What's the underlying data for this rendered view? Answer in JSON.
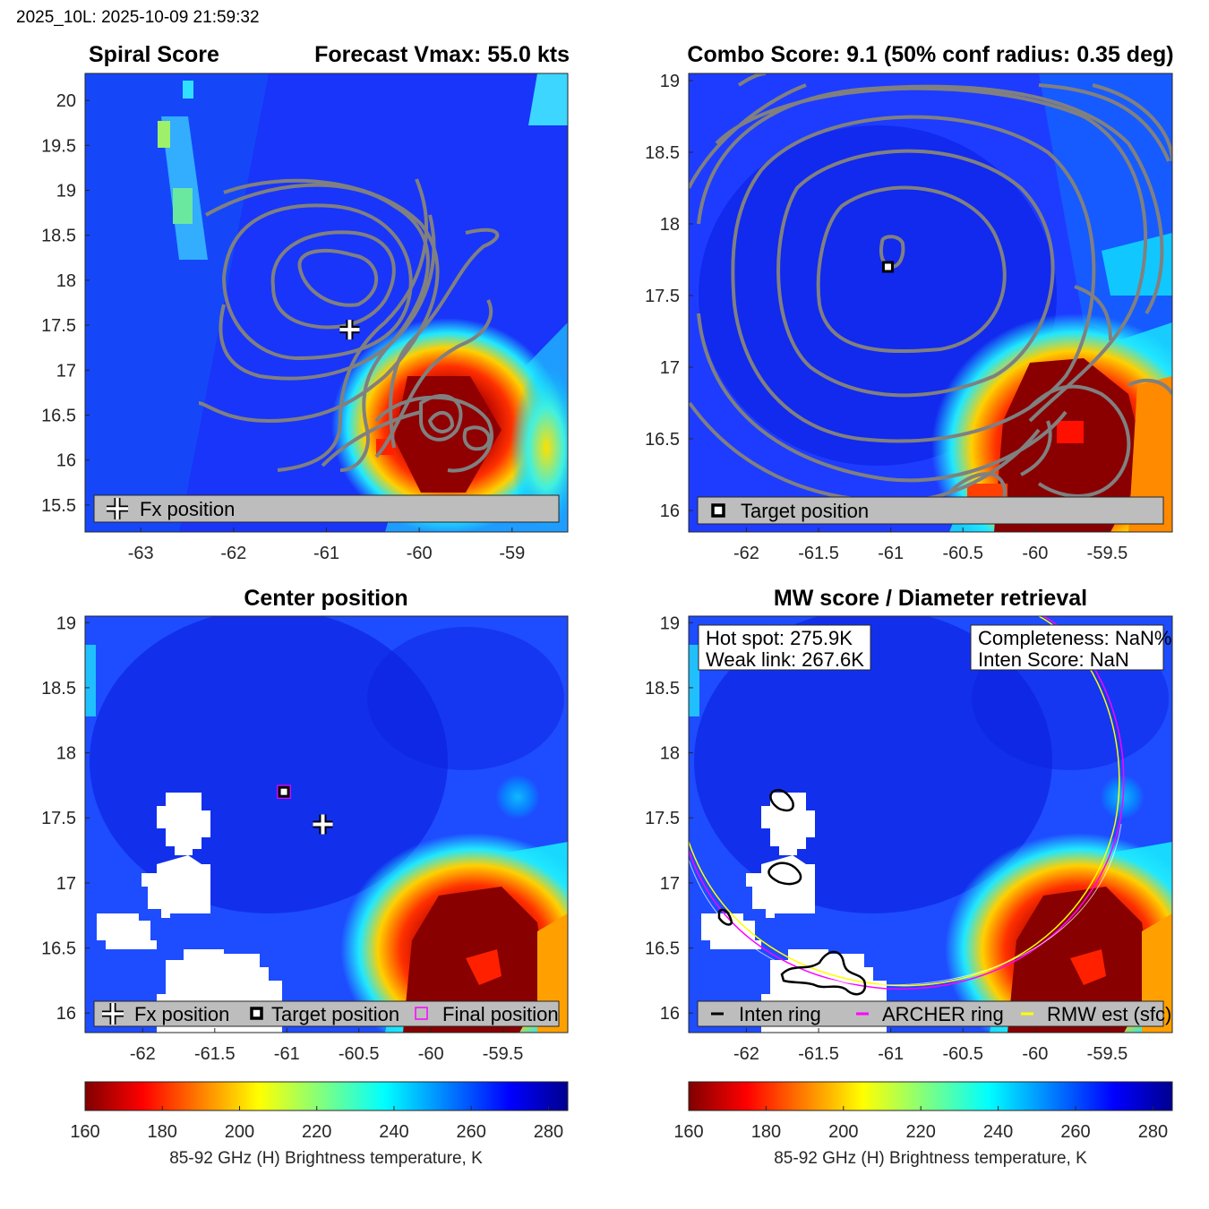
{
  "stamp": "2025_10L: 2025-10-09 21:59:32",
  "colors": {
    "contour": "#808080",
    "ring_inten": "#000000",
    "ring_archer": "#ff00ff",
    "ring_rmw": "#ffff00",
    "legend_bg": "#bdbdbd",
    "cold": "#800000",
    "warm": "#00008f"
  },
  "panels": {
    "spiral": {
      "title_left": "Spiral Score",
      "title_right": "Forecast Vmax: 55.0 kts",
      "legend_label": "Fx position",
      "legend_icon": "plus-icon",
      "xlim": [
        -63.6,
        -58.4
      ],
      "ylim": [
        15.2,
        20.3
      ],
      "xticks": [
        "-63",
        "-62",
        "-61",
        "-60",
        "-59"
      ],
      "yticks": [
        "15.5",
        "16",
        "16.5",
        "17",
        "17.5",
        "18",
        "18.5",
        "19",
        "19.5",
        "20"
      ],
      "fx_position": [
        -60.75,
        17.45
      ]
    },
    "combo": {
      "title": "Combo Score: 9.1  (50% conf radius: 0.35 deg)",
      "legend_label": "Target position",
      "legend_icon": "square-icon",
      "xlim": [
        -62.4,
        -59.05
      ],
      "ylim": [
        15.85,
        19.05
      ],
      "xticks": [
        "-62",
        "-61.5",
        "-61",
        "-60.5",
        "-60",
        "-59.5"
      ],
      "yticks": [
        "16",
        "16.5",
        "17",
        "17.5",
        "18",
        "18.5",
        "19"
      ],
      "target_position": [
        -61.02,
        17.7
      ]
    },
    "center": {
      "title": "Center position",
      "legend": [
        {
          "label": "Fx position",
          "icon": "plus-icon"
        },
        {
          "label": "Target position",
          "icon": "square-icon"
        },
        {
          "label": "Final position",
          "icon": "magenta-square-icon"
        }
      ],
      "xlim": [
        -62.4,
        -59.05
      ],
      "ylim": [
        15.85,
        19.05
      ],
      "xticks": [
        "-62",
        "-61.5",
        "-61",
        "-60.5",
        "-60",
        "-59.5"
      ],
      "yticks": [
        "16",
        "16.5",
        "17",
        "17.5",
        "18",
        "18.5",
        "19"
      ],
      "fx_position": [
        -60.75,
        17.45
      ],
      "target_position": [
        -61.02,
        17.7
      ],
      "final_position": [
        -61.02,
        17.7
      ]
    },
    "mw": {
      "title": "MW score / Diameter retrieval",
      "hot_spot": "Hot spot: 275.9K",
      "weak_link": "Weak link: 267.6K",
      "completeness": "Completeness: NaN%",
      "inten_score": "Inten Score: NaN",
      "legend": [
        {
          "label": "Inten ring",
          "color": "#000000"
        },
        {
          "label": "ARCHER ring",
          "color": "#ff00ff"
        },
        {
          "label": "RMW est (sfc)",
          "color": "#ffff00"
        }
      ],
      "xlim": [
        -62.4,
        -59.05
      ],
      "ylim": [
        15.85,
        19.05
      ],
      "xticks": [
        "-62",
        "-61.5",
        "-61",
        "-60.5",
        "-60",
        "-59.5"
      ],
      "yticks": [
        "16",
        "16.5",
        "17",
        "17.5",
        "18",
        "18.5",
        "19"
      ]
    }
  },
  "chart_data": [
    {
      "type": "heatmap",
      "title": "Spiral Score",
      "subtitle": "Forecast Vmax: 55.0 kts",
      "xlabel": "",
      "ylabel": "",
      "xlim": [
        -63.6,
        -58.4
      ],
      "ylim": [
        15.2,
        20.3
      ],
      "legend": [
        "Fx position"
      ],
      "points": [
        {
          "name": "Fx position",
          "x": -60.75,
          "y": 17.45
        }
      ]
    },
    {
      "type": "heatmap",
      "title": "Combo Score: 9.1  (50% conf radius: 0.35 deg)",
      "xlim": [
        -62.4,
        -59.05
      ],
      "ylim": [
        15.85,
        19.05
      ],
      "legend": [
        "Target position"
      ],
      "points": [
        {
          "name": "Target position",
          "x": -61.02,
          "y": 17.7
        }
      ]
    },
    {
      "type": "heatmap",
      "title": "Center position",
      "xlim": [
        -62.4,
        -59.05
      ],
      "ylim": [
        15.85,
        19.05
      ],
      "legend": [
        "Fx position",
        "Target position",
        "Final position"
      ],
      "points": [
        {
          "name": "Fx position",
          "x": -60.75,
          "y": 17.45
        },
        {
          "name": "Target position",
          "x": -61.02,
          "y": 17.7
        },
        {
          "name": "Final position",
          "x": -61.02,
          "y": 17.7
        }
      ],
      "colorbar": {
        "label": "85-92 GHz (H) Brightness temperature, K",
        "range": [
          160,
          285
        ],
        "ticks": [
          "160",
          "180",
          "200",
          "220",
          "240",
          "260",
          "280"
        ]
      }
    },
    {
      "type": "heatmap",
      "title": "MW score / Diameter retrieval",
      "xlim": [
        -62.4,
        -59.05
      ],
      "ylim": [
        15.85,
        19.05
      ],
      "legend": [
        "Inten ring",
        "ARCHER ring",
        "RMW est (sfc)"
      ],
      "annotations": [
        "Hot spot: 275.9K",
        "Weak link: 267.6K",
        "Completeness: NaN%",
        "Inten Score: NaN"
      ],
      "colorbar": {
        "label": "85-92 GHz (H) Brightness temperature, K",
        "range": [
          160,
          285
        ],
        "ticks": [
          "160",
          "180",
          "200",
          "220",
          "240",
          "260",
          "280"
        ]
      }
    }
  ]
}
